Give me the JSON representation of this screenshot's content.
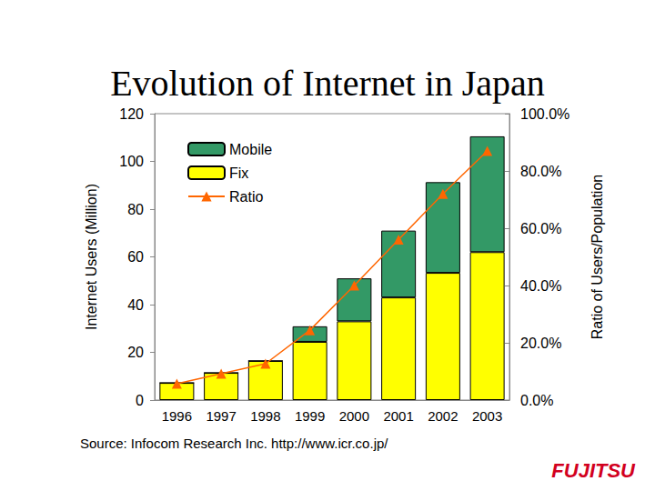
{
  "chart_data": {
    "type": "bar",
    "title": "Evolution of Internet in Japan",
    "categories": [
      "1996",
      "1997",
      "1998",
      "1999",
      "2000",
      "2001",
      "2002",
      "2003"
    ],
    "series": [
      {
        "name": "Mobile",
        "type": "bar",
        "color": "#339966",
        "values": [
          0,
          0,
          0,
          6.5,
          18,
          28,
          38,
          48.5
        ]
      },
      {
        "name": "Fix",
        "type": "bar",
        "color": "#ffff00",
        "values": [
          7.2,
          11.4,
          16.4,
          24.4,
          33,
          43,
          53.3,
          62
        ]
      },
      {
        "name": "Ratio",
        "type": "line",
        "axis": "y2",
        "color": "#ff6600",
        "marker": "triangle",
        "line_style": "solid",
        "values": [
          5.7,
          9.2,
          12.7,
          24.4,
          40,
          56,
          72,
          87
        ]
      }
    ],
    "stacked": true,
    "y_label": "Internet Users (Million)",
    "y2_label": "Ratio of Users/Population",
    "ylim": [
      0,
      120
    ],
    "yticks": [
      0,
      20,
      40,
      60,
      80,
      100,
      120
    ],
    "y2lim": [
      0,
      100
    ],
    "y2ticks": [
      {
        "value": 0,
        "label": "0.0%"
      },
      {
        "value": 20,
        "label": "20.0%"
      },
      {
        "value": 40,
        "label": "40.0%"
      },
      {
        "value": 60,
        "label": "60.0%"
      },
      {
        "value": 80,
        "label": "80.0%"
      },
      {
        "value": 100,
        "label": "100.0%"
      }
    ],
    "legend": "upper left",
    "grid": false,
    "annotations": [
      "Source: Infocom Research Inc. http://www.icr.co.jp/",
      "FUJITSU"
    ]
  }
}
